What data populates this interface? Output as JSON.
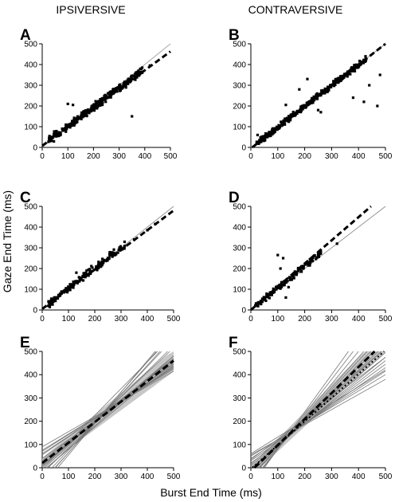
{
  "figure": {
    "column_titles": [
      "IPSIVERSIVE",
      "CONTRAVERSIVE"
    ],
    "ylabel": "Gaze End Time (ms)",
    "xlabel": "Burst End Time (ms)"
  },
  "chart_data": [
    {
      "panel": "A",
      "type": "scatter",
      "xlim": [
        0,
        500
      ],
      "ylim": [
        0,
        500
      ],
      "xticks": [
        0,
        100,
        200,
        300,
        400,
        500
      ],
      "yticks": [
        0,
        100,
        200,
        300,
        400,
        500
      ],
      "unity_line": true,
      "fit_line": {
        "slope": 0.91,
        "intercept": 8,
        "x_range": [
          0,
          500
        ]
      },
      "scatter": {
        "n": 320,
        "x_range": [
          20,
          390
        ],
        "slope": 0.92,
        "intercept": 10,
        "noise": 14,
        "seed": 11,
        "outliers": [
          [
            100,
            210
          ],
          [
            120,
            205
          ],
          [
            350,
            150
          ],
          [
            420,
            395
          ],
          [
            390,
            385
          ]
        ]
      }
    },
    {
      "panel": "B",
      "type": "scatter",
      "xlim": [
        0,
        500
      ],
      "ylim": [
        0,
        500
      ],
      "xticks": [
        0,
        100,
        200,
        300,
        400,
        500
      ],
      "yticks": [
        0,
        100,
        200,
        300,
        400,
        500
      ],
      "unity_line": true,
      "fit_line": {
        "slope": 1.01,
        "intercept": -5,
        "x_range": [
          0,
          500
        ]
      },
      "scatter": {
        "n": 340,
        "x_range": [
          20,
          430
        ],
        "slope": 1.0,
        "intercept": -2,
        "noise": 12,
        "seed": 23,
        "outliers": [
          [
            25,
            60
          ],
          [
            130,
            205
          ],
          [
            180,
            280
          ],
          [
            210,
            330
          ],
          [
            250,
            180
          ],
          [
            260,
            170
          ],
          [
            380,
            240
          ],
          [
            470,
            200
          ],
          [
            480,
            350
          ],
          [
            420,
            220
          ],
          [
            440,
            300
          ]
        ]
      }
    },
    {
      "panel": "C",
      "type": "scatter",
      "xlim": [
        0,
        500
      ],
      "ylim": [
        0,
        500
      ],
      "xticks": [
        0,
        100,
        200,
        300,
        400,
        500
      ],
      "yticks": [
        0,
        100,
        200,
        300,
        400,
        500
      ],
      "unity_line": true,
      "fit_line": {
        "slope": 0.95,
        "intercept": 5,
        "x_range": [
          0,
          500
        ]
      },
      "scatter": {
        "n": 160,
        "x_range": [
          20,
          320
        ],
        "slope": 0.98,
        "intercept": 5,
        "noise": 14,
        "seed": 37,
        "outliers": [
          [
            350,
            340
          ],
          [
            400,
            385
          ],
          [
            430,
            415
          ],
          [
            130,
            180
          ]
        ]
      }
    },
    {
      "panel": "D",
      "type": "scatter",
      "xlim": [
        0,
        500
      ],
      "ylim": [
        0,
        500
      ],
      "xticks": [
        0,
        100,
        200,
        300,
        400,
        500
      ],
      "yticks": [
        0,
        100,
        200,
        300,
        400,
        500
      ],
      "unity_line": true,
      "fit_line": {
        "slope": 1.12,
        "intercept": 0,
        "x_range": [
          0,
          450
        ]
      },
      "scatter": {
        "n": 130,
        "x_range": [
          15,
          260
        ],
        "slope": 1.05,
        "intercept": 2,
        "noise": 14,
        "seed": 53,
        "outliers": [
          [
            100,
            265
          ],
          [
            120,
            250
          ],
          [
            110,
            200
          ],
          [
            130,
            60
          ],
          [
            140,
            110
          ],
          [
            250,
            270
          ],
          [
            320,
            320
          ]
        ]
      }
    },
    {
      "panel": "E",
      "type": "line",
      "xlim": [
        0,
        500
      ],
      "ylim": [
        0,
        500
      ],
      "xticks": [
        0,
        100,
        200,
        300,
        400,
        500
      ],
      "yticks": [
        0,
        100,
        200,
        300,
        400,
        500
      ],
      "mean_line": {
        "slope": 0.88,
        "intercept": 20
      },
      "lines": [
        [
          0.75,
          60
        ],
        [
          0.7,
          75
        ],
        [
          0.95,
          5
        ],
        [
          1.1,
          -25
        ],
        [
          1.2,
          -45
        ],
        [
          1.3,
          -65
        ],
        [
          1.05,
          -10
        ],
        [
          0.85,
          25
        ],
        [
          0.9,
          15
        ],
        [
          0.8,
          40
        ],
        [
          1.15,
          -5
        ],
        [
          0.65,
          90
        ],
        [
          1.0,
          -20
        ],
        [
          0.92,
          10
        ],
        [
          0.78,
          55
        ],
        [
          1.25,
          -60
        ],
        [
          0.88,
          30
        ],
        [
          0.72,
          70
        ],
        [
          1.35,
          -80
        ],
        [
          0.95,
          -15
        ]
      ]
    },
    {
      "panel": "F",
      "type": "line",
      "xlim": [
        0,
        500
      ],
      "ylim": [
        0,
        500
      ],
      "xticks": [
        0,
        100,
        200,
        300,
        400,
        500
      ],
      "yticks": [
        0,
        100,
        200,
        300,
        400,
        500
      ],
      "mean_line": {
        "slope": 1.12,
        "intercept": -15
      },
      "mean_line_2": {
        "slope": 1.02,
        "intercept": -5
      },
      "lines": [
        [
          0.65,
          55
        ],
        [
          0.7,
          50
        ],
        [
          0.75,
          40
        ],
        [
          0.8,
          30
        ],
        [
          0.85,
          20
        ],
        [
          0.9,
          10
        ],
        [
          0.95,
          0
        ],
        [
          1.0,
          -5
        ],
        [
          1.05,
          -10
        ],
        [
          1.1,
          -20
        ],
        [
          1.15,
          -25
        ],
        [
          1.2,
          -35
        ],
        [
          1.3,
          -45
        ],
        [
          1.4,
          -60
        ],
        [
          1.5,
          -70
        ],
        [
          0.72,
          60
        ],
        [
          0.88,
          35
        ],
        [
          1.0,
          15
        ],
        [
          1.25,
          -40
        ],
        [
          1.6,
          -80
        ]
      ]
    }
  ]
}
